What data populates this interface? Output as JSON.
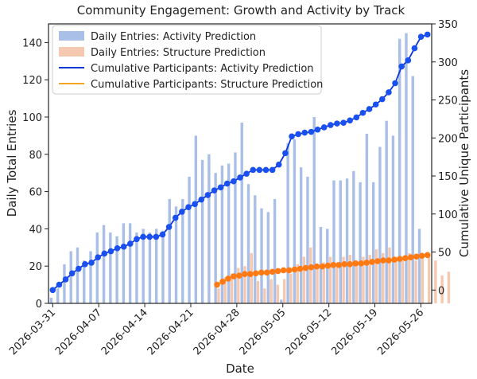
{
  "chart_data": {
    "type": "bar+line",
    "title": "Community Engagement: Growth and Activity by Track",
    "xlabel": "Date",
    "ylabel_left": "Daily Total Entries",
    "ylabel_right": "Cumulative Unique Participants",
    "ylim_left": [
      0,
      150
    ],
    "ylim_right": [
      -17.5,
      350
    ],
    "yticks_left": [
      0,
      20,
      40,
      60,
      80,
      100,
      120,
      140
    ],
    "yticks_right": [
      0,
      50,
      100,
      150,
      200,
      250,
      300,
      350
    ],
    "x_start": "2026-03-31",
    "x_end": "2026-05-27",
    "xticks": [
      "2026-03-31",
      "2026-04-07",
      "2026-04-14",
      "2026-04-21",
      "2026-04-28",
      "2026-05-05",
      "2026-05-12",
      "2026-05-19",
      "2026-05-26"
    ],
    "legend_position": "top-left",
    "colors": {
      "activity_bars": "#a9bfe8",
      "structure_bars": "#f5c8b0",
      "activity_line": "#0b36d6",
      "activity_marker": "#1a4ff0",
      "structure_line": "#f5a623",
      "structure_marker": "#ff7a12"
    },
    "series": [
      {
        "name": "Daily Entries: Activity Prediction",
        "kind": "bar",
        "axis": "left",
        "start": "2026-03-31",
        "values": [
          3,
          8,
          21,
          28,
          30,
          23,
          28,
          38,
          42,
          38,
          36,
          43,
          43,
          38,
          40,
          38,
          40,
          39,
          56,
          52,
          56,
          68,
          90,
          77,
          80,
          70,
          74,
          75,
          81,
          97,
          64,
          58,
          51,
          49,
          56,
          2,
          86,
          88,
          73,
          68,
          100,
          41,
          40,
          66,
          66,
          67,
          71,
          65,
          91,
          65,
          84,
          98,
          90,
          142,
          145,
          122,
          40
        ]
      },
      {
        "name": "Daily Entries: Structure Prediction",
        "kind": "bar",
        "axis": "left",
        "start": "2026-04-25",
        "values": [
          8,
          14,
          16,
          19,
          20,
          27,
          12,
          8,
          13,
          10,
          13,
          16,
          21,
          25,
          30,
          20,
          22,
          25,
          22,
          25,
          26,
          23,
          25,
          26,
          29,
          27,
          30,
          25,
          25,
          27,
          23,
          24,
          25,
          23,
          15,
          17
        ]
      },
      {
        "name": "Cumulative Participants: Activity Prediction",
        "kind": "line",
        "axis": "right",
        "start": "2026-03-31",
        "values": [
          0,
          7,
          14,
          22,
          28,
          34,
          36,
          43,
          48,
          51,
          55,
          57,
          61,
          67,
          70,
          70,
          70,
          73,
          83,
          95,
          103,
          109,
          113,
          119,
          125,
          131,
          135,
          140,
          143,
          148,
          153,
          158,
          158,
          158,
          158,
          165,
          180,
          202,
          205,
          207,
          208,
          211,
          214,
          217,
          219,
          220,
          223,
          227,
          233,
          238,
          244,
          251,
          260,
          272,
          294,
          302,
          318,
          333,
          336
        ]
      },
      {
        "name": "Cumulative Participants: Structure Prediction",
        "kind": "line",
        "axis": "right",
        "start": "2026-04-25",
        "values": [
          7,
          11,
          15,
          18,
          19,
          21,
          21,
          22,
          23,
          23,
          24,
          25,
          26,
          26,
          27,
          28,
          29,
          30,
          31,
          31,
          32,
          33,
          33,
          34,
          34,
          35,
          35,
          36,
          37,
          38,
          39,
          39,
          40,
          41,
          42,
          43,
          44,
          45,
          46
        ]
      }
    ]
  }
}
